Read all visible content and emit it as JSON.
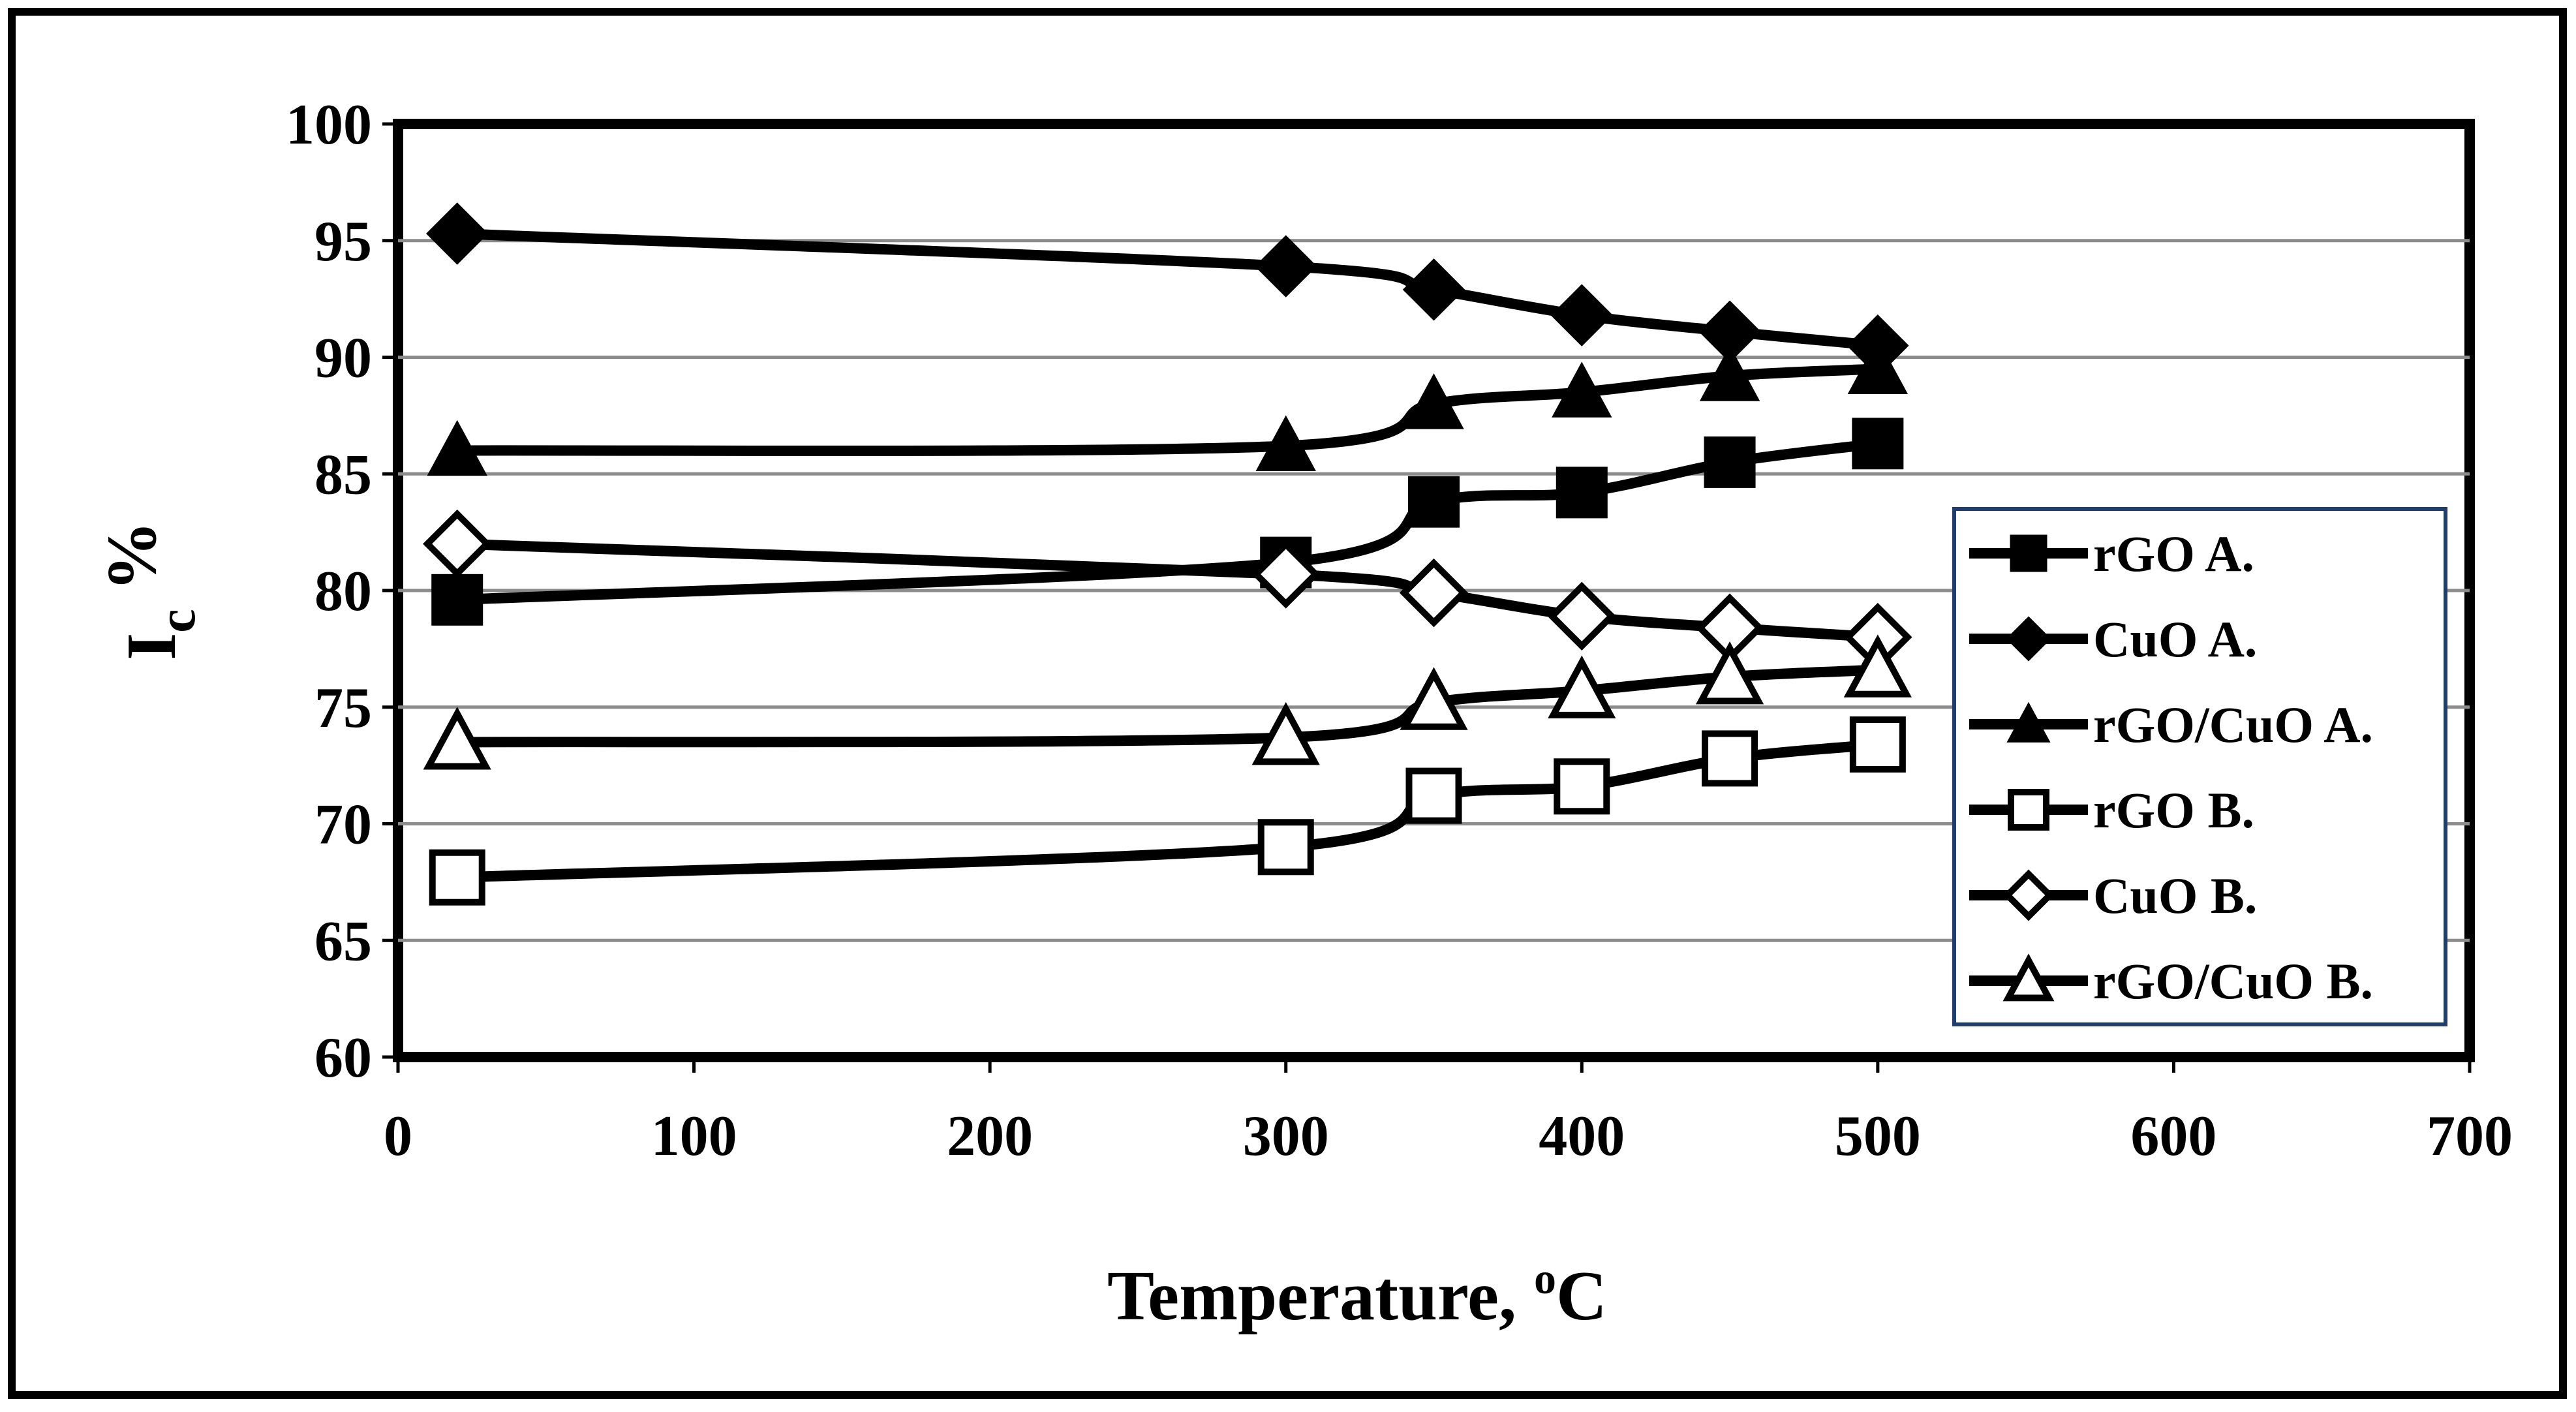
{
  "chart_data": {
    "type": "line",
    "title": "",
    "xlabel": {
      "text": "Temperature, ",
      "sup": "o",
      "after": "C"
    },
    "ylabel": {
      "main": "I",
      "sub": "c",
      "after": " %"
    },
    "xlim": [
      0,
      700
    ],
    "ylim": [
      60,
      100
    ],
    "xticks": [
      0,
      100,
      200,
      300,
      400,
      500,
      600,
      700
    ],
    "yticks": [
      60,
      65,
      70,
      75,
      80,
      85,
      90,
      95,
      100
    ],
    "grid": "horizontal",
    "legend_position": "right",
    "x": [
      20,
      300,
      350,
      400,
      450,
      500
    ],
    "series": [
      {
        "name": "rGO A.",
        "marker": "square",
        "filled": true,
        "values": [
          79.6,
          81.2,
          83.8,
          84.2,
          85.5,
          86.3
        ]
      },
      {
        "name": "CuO A.",
        "marker": "diamond",
        "filled": true,
        "values": [
          95.3,
          93.9,
          92.9,
          91.8,
          91.1,
          90.5
        ]
      },
      {
        "name": "rGO/CuO A.",
        "marker": "triangle",
        "filled": true,
        "values": [
          86.0,
          86.2,
          88.0,
          88.5,
          89.2,
          89.5
        ]
      },
      {
        "name": "rGO B.",
        "marker": "square",
        "filled": false,
        "values": [
          67.7,
          69.0,
          71.2,
          71.6,
          72.8,
          73.4
        ]
      },
      {
        "name": "CuO B.",
        "marker": "diamond",
        "filled": false,
        "values": [
          82.0,
          80.7,
          79.9,
          78.9,
          78.4,
          78.0
        ]
      },
      {
        "name": "rGO/CuO B.",
        "marker": "triangle",
        "filled": false,
        "values": [
          73.5,
          73.7,
          75.2,
          75.7,
          76.3,
          76.6
        ]
      }
    ],
    "colors": {
      "line": "#000000",
      "grid": "#8c8c8c",
      "legend_border": "#1f3d6e",
      "background": "#ffffff"
    }
  }
}
